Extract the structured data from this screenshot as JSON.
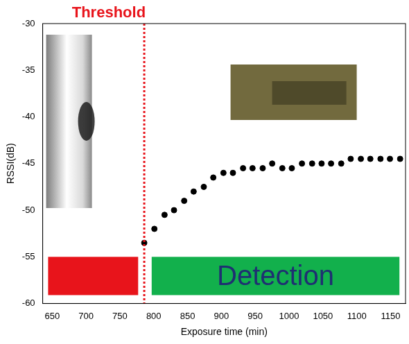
{
  "chart_data": {
    "type": "scatter",
    "x_label": "Exposure time (min)",
    "y_label": "RSSI(dB)",
    "x": [
      786,
      801,
      816,
      830,
      845,
      859,
      874,
      888,
      903,
      917,
      932,
      946,
      961,
      975,
      990,
      1004,
      1019,
      1034,
      1048,
      1062,
      1077,
      1091,
      1106,
      1120,
      1135,
      1149,
      1164
    ],
    "values": [
      -53.5,
      -52,
      -50.5,
      -50,
      -49,
      -48,
      -47.5,
      -46.5,
      -46,
      -46,
      -45.5,
      -45.5,
      -45.5,
      -45,
      -45.5,
      -45.5,
      -45,
      -45,
      -45,
      -45,
      -45,
      -44.5,
      -44.5,
      -44.5,
      -44.5,
      -44.5,
      -44.5
    ],
    "color": "#000000",
    "marker": "circle",
    "xlim": [
      636,
      1172
    ],
    "xticks": [
      650,
      700,
      750,
      800,
      850,
      900,
      950,
      1000,
      1050,
      1100,
      1150
    ],
    "ylim": [
      -60,
      -30
    ],
    "yticks": [
      -60,
      -55,
      -50,
      -45,
      -40,
      -35,
      -30
    ],
    "grid": false,
    "annotations": [
      {
        "text": "Threshold",
        "x": 786,
        "color": "#e8141b",
        "line_style": "dotted"
      }
    ],
    "regions": [
      {
        "xlim": [
          644,
          777
        ],
        "ylim": [
          -59.1,
          -55
        ],
        "color": "#e8141b"
      },
      {
        "xlim": [
          797,
          1163
        ],
        "ylim": [
          -59.1,
          -55
        ],
        "color": "#12b04c",
        "label": "Detection"
      }
    ]
  }
}
